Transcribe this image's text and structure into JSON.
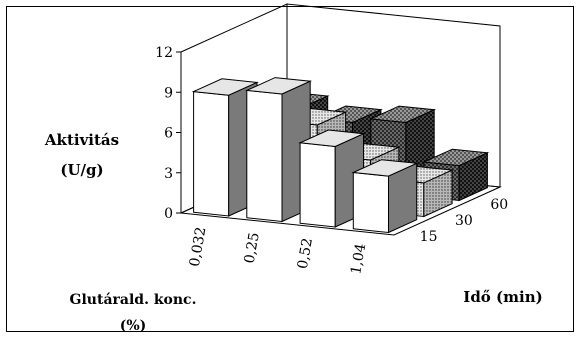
{
  "chart_data": {
    "type": "bar3d",
    "title": "",
    "ylabel": [
      "Aktivitás",
      "(U/g)"
    ],
    "xlabel": [
      "Glutárald. konc.",
      "(%)"
    ],
    "zlabel": "Idő (min)",
    "ylim": [
      0,
      12
    ],
    "yticks": [
      "0",
      "3",
      "6",
      "9",
      "12"
    ],
    "categories": [
      "0,032",
      "0,25",
      "0,52",
      "1,04"
    ],
    "series": [
      {
        "name": "15",
        "values": [
          9.0,
          9.5,
          6.0,
          4.2
        ],
        "fill": "white"
      },
      {
        "name": "30",
        "values": [
          6.2,
          6.0,
          3.8,
          2.5
        ],
        "fill": "dots"
      },
      {
        "name": "60",
        "values": [
          5.6,
          5.0,
          5.4,
          2.6
        ],
        "fill": "checker"
      }
    ],
    "grid": false
  }
}
